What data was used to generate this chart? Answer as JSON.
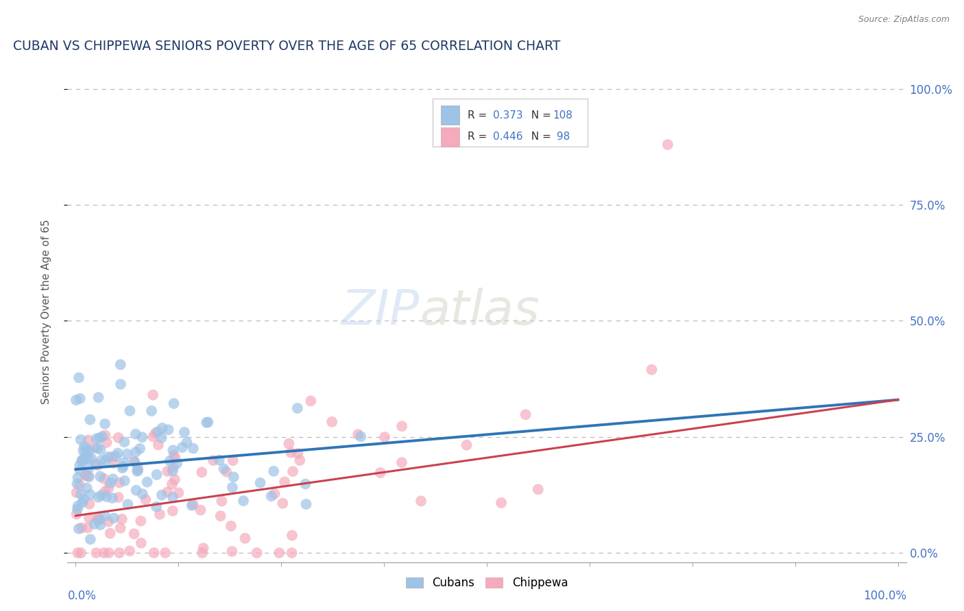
{
  "title": "CUBAN VS CHIPPEWA SENIORS POVERTY OVER THE AGE OF 65 CORRELATION CHART",
  "source": "Source: ZipAtlas.com",
  "ylabel": "Seniors Poverty Over the Age of 65",
  "cubans_R": 0.373,
  "cubans_N": 108,
  "chippewa_R": 0.446,
  "chippewa_N": 98,
  "blue_color": "#9DC3E6",
  "pink_color": "#F4ABBC",
  "blue_line_color": "#2E75B6",
  "pink_line_color": "#C9414E",
  "title_color": "#203864",
  "source_color": "#808080",
  "legend_text_color": "#4472C4",
  "background_color": "#FFFFFF",
  "grid_color": "#BBBBBB",
  "watermark": "ZIPatlas",
  "blue_line_start": 0.18,
  "blue_line_end": 0.33,
  "pink_line_start": 0.08,
  "pink_line_end": 0.33,
  "xlim": [
    0.0,
    1.0
  ],
  "ylim": [
    0.0,
    1.05
  ]
}
